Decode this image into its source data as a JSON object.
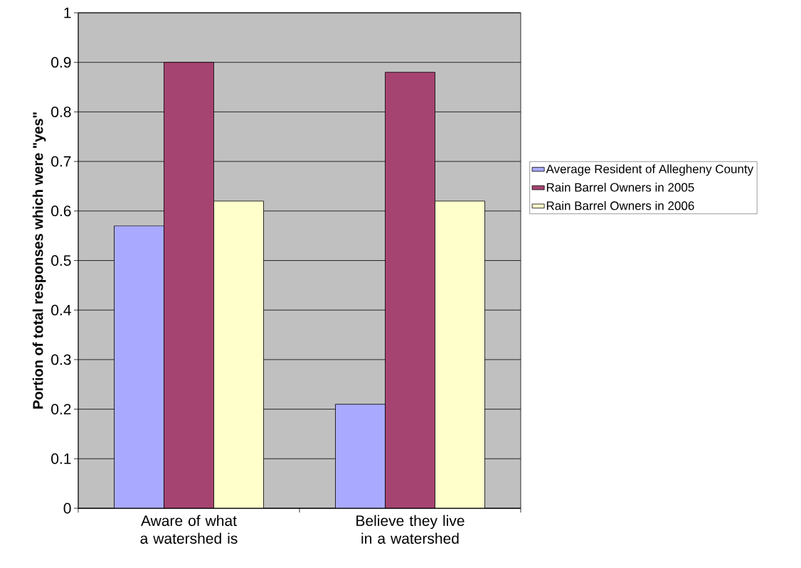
{
  "chart_data": {
    "type": "bar",
    "ylabel": "Portion of total responses which were \"yes\"",
    "categories": [
      "Aware of what a watershed is",
      "Believe they live in a watershed"
    ],
    "series": [
      {
        "name": "Average Resident of Allegheny County",
        "color": "#a9aaff",
        "values": [
          0.57,
          0.21
        ]
      },
      {
        "name": "Rain Barrel Owners in 2005",
        "color": "#a64471",
        "values": [
          0.9,
          0.88
        ]
      },
      {
        "name": "Rain Barrel Owners in 2006",
        "color": "#ffffcc",
        "values": [
          0.62,
          0.62
        ]
      }
    ],
    "ylim": [
      0,
      1
    ],
    "yticks": [
      0,
      0.1,
      0.2,
      0.3,
      0.4,
      0.5,
      0.6,
      0.7,
      0.8,
      0.9,
      1
    ],
    "grid": "y",
    "legend": "right"
  }
}
